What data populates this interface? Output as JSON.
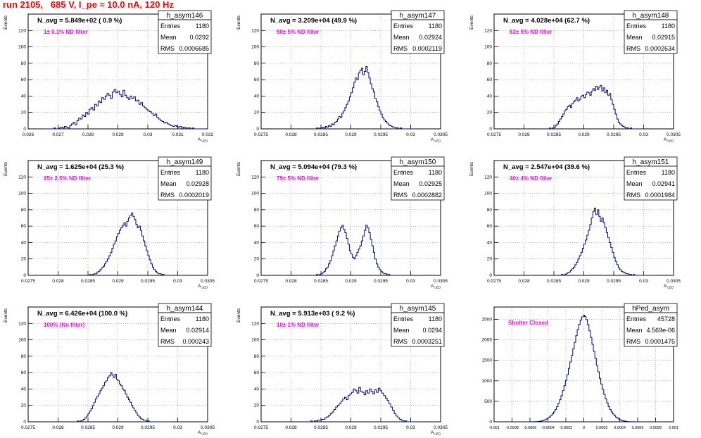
{
  "page": {
    "title": "run 2105,   685 V, I_pe ≈ 10.0 nA, 120 Hz",
    "title_color": "#ff0000",
    "axis_color": "#000000",
    "hist_color": "#000080",
    "annotation_color": "#ff00ff"
  },
  "chart_data": [
    {
      "type": "histogram",
      "name": "h_asym146",
      "stats": {
        "entries_label": "Entries",
        "entries": "1180",
        "mean_label": "Mean",
        "mean": "0.0292",
        "rms_label": "RMS",
        "rms": "0.0006685"
      },
      "navg": "N_avg = 5.849e+02 ( 0.9 %)",
      "filter": "1± 0.1% ND filter",
      "xlabel": "A_{LED}",
      "ylabel": "Events",
      "xlim": [
        0.026,
        0.032
      ],
      "ylim": [
        0,
        140
      ],
      "xticks": [
        0.026,
        0.027,
        0.028,
        0.029,
        0.03,
        0.031,
        0.032
      ],
      "xtick_labels": [
        "0.026",
        "0.027",
        "0.028",
        "0.029",
        "0.03",
        "0.031",
        "0.032"
      ],
      "yticks": [
        0,
        20,
        40,
        60,
        80,
        100,
        120
      ],
      "ytick_labels": [
        "0",
        "20",
        "40",
        "60",
        "80",
        "100",
        "120"
      ],
      "bin_edges": [
        0.0265,
        0.0319
      ],
      "counts": [
        0,
        0,
        0,
        0,
        0,
        0,
        1,
        0,
        0,
        1,
        2,
        1,
        3,
        2,
        1,
        4,
        6,
        8,
        5,
        10,
        13,
        12,
        17,
        15,
        20,
        18,
        24,
        26,
        23,
        30,
        28,
        34,
        32,
        38,
        36,
        40,
        43,
        41,
        37,
        45,
        48,
        44,
        46,
        42,
        39,
        47,
        41,
        38,
        36,
        40,
        37,
        39,
        34,
        35,
        30,
        32,
        28,
        26,
        24,
        22,
        21,
        19,
        16,
        18,
        14,
        12,
        10,
        9,
        7,
        8,
        6,
        5,
        4,
        3,
        4,
        3,
        2,
        3,
        1,
        2,
        1,
        1,
        1,
        0,
        1,
        0,
        0,
        0,
        0,
        0,
        0
      ]
    },
    {
      "type": "histogram",
      "name": "h_asym147",
      "stats": {
        "entries_label": "Entries",
        "entries": "1180",
        "mean_label": "Mean",
        "mean": "0.02924",
        "rms_label": "RMS",
        "rms": "0.0002119"
      },
      "navg": "N_avg = 3.209e+04 (49.9 %)",
      "filter": "50± 5% ND filter",
      "xlabel": "A_{LED}",
      "ylabel": "Events",
      "xlim": [
        0.0275,
        0.0305
      ],
      "ylim": [
        0,
        140
      ],
      "xticks": [
        0.0275,
        0.028,
        0.0285,
        0.029,
        0.0295,
        0.03,
        0.0305
      ],
      "xtick_labels": [
        "0.0275",
        "0.028",
        "0.0285",
        "0.029",
        "0.0295",
        "0.03",
        "0.0305"
      ],
      "yticks": [
        0,
        20,
        40,
        60,
        80,
        100,
        120
      ],
      "ytick_labels": [
        "0",
        "20",
        "40",
        "60",
        "80",
        "100",
        "120"
      ],
      "bin_edges": [
        0.0284,
        0.03
      ],
      "counts": [
        0,
        1,
        0,
        1,
        1,
        2,
        1,
        3,
        2,
        4,
        3,
        6,
        5,
        8,
        9,
        12,
        15,
        14,
        19,
        22,
        26,
        30,
        34,
        39,
        44,
        50,
        57,
        62,
        60,
        68,
        71,
        74,
        66,
        70,
        76,
        69,
        62,
        55,
        49,
        45,
        37,
        33,
        27,
        22,
        18,
        14,
        11,
        9,
        7,
        5,
        4,
        3,
        2,
        2,
        1,
        1,
        0,
        1,
        0,
        0,
        0,
        0,
        0,
        0
      ]
    },
    {
      "type": "histogram",
      "name": "h_asym148",
      "stats": {
        "entries_label": "Entries",
        "entries": "1180",
        "mean_label": "Mean",
        "mean": "0.02915",
        "rms_label": "RMS",
        "rms": "0.0002634"
      },
      "navg": "N_avg = 4.028e+04 (62.7 %)",
      "filter": "63± 5% ND filter",
      "xlabel": "A_{LED}",
      "ylabel": "Events",
      "xlim": [
        0.0275,
        0.0305
      ],
      "ylim": [
        0,
        140
      ],
      "xticks": [
        0.0275,
        0.028,
        0.0285,
        0.029,
        0.0295,
        0.03,
        0.0305
      ],
      "xtick_labels": [
        "0.0275",
        "0.028",
        "0.0285",
        "0.029",
        "0.0295",
        "0.03",
        "0.0305"
      ],
      "yticks": [
        0,
        20,
        40,
        60,
        80,
        100,
        120
      ],
      "ytick_labels": [
        "0",
        "20",
        "40",
        "60",
        "80",
        "100",
        "120"
      ],
      "bin_edges": [
        0.0284,
        0.03
      ],
      "counts": [
        0,
        1,
        0,
        1,
        2,
        4,
        6,
        9,
        12,
        15,
        18,
        22,
        24,
        27,
        29,
        26,
        31,
        33,
        35,
        38,
        34,
        36,
        40,
        41,
        38,
        42,
        45,
        44,
        41,
        46,
        49,
        47,
        52,
        48,
        51,
        53,
        46,
        50,
        44,
        47,
        41,
        43,
        36,
        30,
        24,
        18,
        12,
        8,
        6,
        4,
        3,
        2,
        1,
        1,
        0,
        1,
        0,
        0,
        0,
        0,
        0,
        0,
        0,
        0
      ]
    },
    {
      "type": "histogram",
      "name": "h_asym149",
      "stats": {
        "entries_label": "Entries",
        "entries": "1180",
        "mean_label": "Mean",
        "mean": "0.02928",
        "rms_label": "RMS",
        "rms": "0.0002019"
      },
      "navg": "N_avg = 1.625e+04 (25.3 %)",
      "filter": "25± 2.5% ND filter",
      "xlabel": "A_{LED}",
      "ylabel": "Events",
      "xlim": [
        0.0275,
        0.0305
      ],
      "ylim": [
        0,
        140
      ],
      "xticks": [
        0.0275,
        0.028,
        0.0285,
        0.029,
        0.0295,
        0.03,
        0.0305
      ],
      "xtick_labels": [
        "0.0275",
        "0.028",
        "0.0285",
        "0.029",
        "0.0295",
        "0.03",
        "0.0305"
      ],
      "yticks": [
        0,
        20,
        40,
        60,
        80,
        100,
        120
      ],
      "ytick_labels": [
        "0",
        "20",
        "40",
        "60",
        "80",
        "100",
        "120"
      ],
      "bin_edges": [
        0.0285,
        0.0301
      ],
      "counts": [
        0,
        1,
        0,
        1,
        2,
        2,
        4,
        5,
        7,
        9,
        11,
        14,
        17,
        20,
        24,
        28,
        33,
        38,
        42,
        47,
        51,
        55,
        58,
        61,
        64,
        60,
        66,
        70,
        73,
        76,
        72,
        68,
        62,
        58,
        60,
        55,
        48,
        42,
        36,
        30,
        24,
        19,
        14,
        10,
        7,
        5,
        3,
        2,
        2,
        1,
        1,
        0,
        0,
        0,
        0,
        0,
        0,
        0,
        0,
        0,
        0,
        0,
        0,
        0
      ]
    },
    {
      "type": "histogram",
      "name": "h_asym150",
      "stats": {
        "entries_label": "Entries",
        "entries": "1180",
        "mean_label": "Mean",
        "mean": "0.02925",
        "rms_label": "RMS",
        "rms": "0.0002882"
      },
      "navg": "N_avg = 5.094e+04 (79.3 %)",
      "filter": "79± 5% ND filter",
      "xlabel": "A_{LED}",
      "ylabel": "Events",
      "xlim": [
        0.0275,
        0.0305
      ],
      "ylim": [
        0,
        140
      ],
      "xticks": [
        0.0275,
        0.028,
        0.0285,
        0.029,
        0.0295,
        0.03,
        0.0305
      ],
      "xtick_labels": [
        "0.0275",
        "0.028",
        "0.0285",
        "0.029",
        "0.0295",
        "0.03",
        "0.0305"
      ],
      "yticks": [
        0,
        20,
        40,
        60,
        80,
        100,
        120
      ],
      "ytick_labels": [
        "0",
        "20",
        "40",
        "60",
        "80",
        "100",
        "120"
      ],
      "bin_edges": [
        0.0284,
        0.03
      ],
      "counts": [
        0,
        1,
        0,
        1,
        2,
        3,
        5,
        8,
        10,
        14,
        18,
        24,
        30,
        36,
        42,
        48,
        54,
        58,
        61,
        56,
        52,
        45,
        38,
        30,
        26,
        22,
        20,
        24,
        28,
        32,
        36,
        42,
        48,
        55,
        61,
        58,
        52,
        44,
        36,
        28,
        20,
        14,
        10,
        7,
        5,
        3,
        2,
        2,
        1,
        1,
        0,
        0,
        0,
        0,
        0,
        0,
        0,
        0,
        0,
        0,
        0,
        0,
        0,
        0
      ]
    },
    {
      "type": "histogram",
      "name": "h_asym151",
      "stats": {
        "entries_label": "Entries",
        "entries": "1180",
        "mean_label": "Mean",
        "mean": "0.02941",
        "rms_label": "RMS",
        "rms": "0.0001984"
      },
      "navg": "N_avg = 2.547e+04 (39.6 %)",
      "filter": "40± 4% ND filter",
      "xlabel": "A_{LED}",
      "ylabel": "Events",
      "xlim": [
        0.0275,
        0.0305
      ],
      "ylim": [
        0,
        140
      ],
      "xticks": [
        0.0275,
        0.028,
        0.0285,
        0.029,
        0.0295,
        0.03,
        0.0305
      ],
      "xtick_labels": [
        "0.0275",
        "0.028",
        "0.0285",
        "0.029",
        "0.0295",
        "0.03",
        "0.0305"
      ],
      "yticks": [
        0,
        20,
        40,
        60,
        80,
        100,
        120
      ],
      "ytick_labels": [
        "0",
        "20",
        "40",
        "60",
        "80",
        "100",
        "120"
      ],
      "bin_edges": [
        0.0286,
        0.0302
      ],
      "counts": [
        0,
        1,
        0,
        1,
        2,
        3,
        4,
        6,
        8,
        10,
        13,
        16,
        20,
        24,
        28,
        33,
        38,
        43,
        49,
        55,
        62,
        70,
        78,
        82,
        74,
        80,
        72,
        66,
        70,
        64,
        58,
        52,
        46,
        40,
        34,
        28,
        22,
        17,
        13,
        9,
        7,
        5,
        4,
        3,
        2,
        2,
        1,
        1,
        0,
        1,
        0,
        0,
        0,
        0,
        0,
        0,
        0,
        0,
        0,
        0,
        0,
        0,
        0,
        0
      ]
    },
    {
      "type": "histogram",
      "name": "h_asym144",
      "stats": {
        "entries_label": "Entries",
        "entries": "1180",
        "mean_label": "Mean",
        "mean": "0.02914",
        "rms_label": "RMS",
        "rms": "0.000243"
      },
      "navg": "N_avg = 6.426e+04 (100.0 %)",
      "filter": "100% (No filter)",
      "xlabel": "A_{LED}",
      "ylabel": "Events",
      "xlim": [
        0.0275,
        0.0305
      ],
      "ylim": [
        0,
        140
      ],
      "xticks": [
        0.0275,
        0.028,
        0.0285,
        0.029,
        0.0295,
        0.03,
        0.0305
      ],
      "xtick_labels": [
        "0.0275",
        "0.028",
        "0.0285",
        "0.029",
        "0.0295",
        "0.03",
        "0.0305"
      ],
      "yticks": [
        0,
        20,
        40,
        60,
        80,
        100,
        120
      ],
      "ytick_labels": [
        "0",
        "20",
        "40",
        "60",
        "80",
        "100",
        "120"
      ],
      "bin_edges": [
        0.0283,
        0.0299
      ],
      "counts": [
        0,
        1,
        0,
        1,
        2,
        3,
        5,
        7,
        10,
        13,
        16,
        20,
        24,
        28,
        31,
        34,
        38,
        41,
        44,
        48,
        50,
        54,
        56,
        60,
        57,
        54,
        58,
        52,
        50,
        46,
        44,
        40,
        38,
        34,
        30,
        27,
        24,
        20,
        17,
        14,
        11,
        8,
        6,
        4,
        3,
        2,
        2,
        1,
        1,
        0,
        0,
        0,
        0,
        0,
        0,
        0,
        0,
        0,
        0,
        0,
        0,
        0,
        0,
        0
      ]
    },
    {
      "type": "histogram",
      "name": "h_asym145",
      "stats": {
        "entries_label": "Entries",
        "entries": "1180",
        "mean_label": "Mean",
        "mean": "0.0294",
        "rms_label": "RMS",
        "rms": "0.0003251"
      },
      "navg": "N_avg = 5.913e+03 ( 9.2 %)",
      "filter": "10± 1% ND filter",
      "xlabel": "A_{LED}",
      "ylabel": "Events",
      "xlim": [
        0.0275,
        0.0305
      ],
      "ylim": [
        0,
        140
      ],
      "xticks": [
        0.0275,
        0.028,
        0.0285,
        0.029,
        0.0295,
        0.03,
        0.0305
      ],
      "xtick_labels": [
        "0.0275",
        "0.028",
        "0.0285",
        "0.029",
        "0.0295",
        "0.03",
        "0.0305"
      ],
      "yticks": [
        0,
        20,
        40,
        60,
        80,
        100,
        120
      ],
      "ytick_labels": [
        "0",
        "20",
        "40",
        "60",
        "80",
        "100",
        "120"
      ],
      "bin_edges": [
        0.0283,
        0.0302
      ],
      "counts": [
        0,
        1,
        0,
        1,
        1,
        2,
        2,
        3,
        3,
        5,
        6,
        8,
        10,
        12,
        15,
        18,
        20,
        22,
        25,
        28,
        30,
        27,
        32,
        34,
        36,
        40,
        38,
        35,
        42,
        37,
        36,
        33,
        38,
        35,
        40,
        37,
        34,
        39,
        36,
        41,
        38,
        35,
        32,
        29,
        26,
        22,
        18,
        14,
        10,
        7,
        5,
        3,
        2,
        1,
        1,
        0,
        0,
        0,
        0,
        0,
        0,
        0,
        0,
        0
      ]
    },
    {
      "type": "histogram",
      "name": "hPed_asym",
      "stats": {
        "entries_label": "Entries",
        "entries": "45728",
        "mean_label": "Mean",
        "mean": "4.569e-06",
        "rms_label": "RMS",
        "rms": "0.0001475"
      },
      "navg": "",
      "filter": "Shutter Closed",
      "xlabel": "",
      "ylabel": "",
      "xlim": [
        -0.001,
        0.001
      ],
      "ylim": [
        0,
        2800
      ],
      "xticks": [
        -0.001,
        -0.0008,
        -0.0006,
        -0.0004,
        -0.0002,
        0,
        0.0002,
        0.0004,
        0.0006,
        0.0008,
        0.001
      ],
      "xtick_labels": [
        "-0.001",
        "-0.0008",
        "-0.0006",
        "-0.0004",
        "-0.0002",
        "0",
        "0.0002",
        "0.0004",
        "0.0006",
        "0.0008",
        "0.001"
      ],
      "yticks": [
        0,
        500,
        1000,
        1500,
        2000,
        2500
      ],
      "ytick_labels": [
        "0",
        "500",
        "1000",
        "1500",
        "2000",
        "2500"
      ],
      "bin_edges": [
        -0.0006,
        0.0006
      ],
      "counts": [
        0,
        1,
        2,
        3,
        5,
        8,
        12,
        18,
        26,
        38,
        52,
        70,
        92,
        120,
        155,
        195,
        240,
        300,
        370,
        450,
        540,
        640,
        760,
        880,
        1010,
        1150,
        1300,
        1460,
        1620,
        1780,
        1940,
        2100,
        2250,
        2380,
        2480,
        2560,
        2600,
        2570,
        2490,
        2370,
        2220,
        2060,
        1890,
        1720,
        1550,
        1380,
        1220,
        1060,
        920,
        790,
        670,
        560,
        460,
        370,
        300,
        240,
        190,
        150,
        115,
        88,
        66,
        48,
        34,
        24,
        16,
        10,
        6,
        4,
        2,
        1,
        1,
        0,
        0
      ]
    }
  ]
}
